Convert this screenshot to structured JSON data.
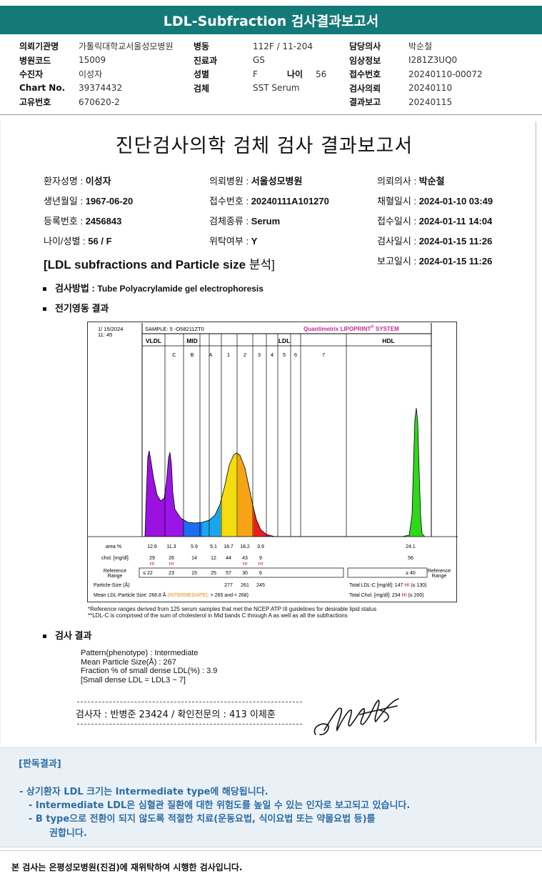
{
  "header": {
    "title": "LDL-Subfraction 검사결과보고서",
    "rows": [
      [
        {
          "k": "의뢰기관명",
          "v": "가톨릭대학교서울성모병원"
        },
        {
          "k": "병동",
          "v": "112F / 11-204"
        },
        {
          "k": "담당의사",
          "v": "박순철"
        }
      ],
      [
        {
          "k": "병원코드",
          "v": "15009"
        },
        {
          "k": "진료과",
          "v": "GS"
        },
        {
          "k": "임상정보",
          "v": "I281Z3UQ0"
        }
      ],
      [
        {
          "k": "수진자",
          "v": "이성자"
        },
        {
          "k": "성별",
          "v": "F"
        },
        {
          "k": "접수번호",
          "v": "20240110-00072"
        }
      ],
      [
        {
          "k": "Chart No.",
          "v": "39374432"
        },
        {
          "k": "검체",
          "v": "SST Serum"
        },
        {
          "k": "검사의뢰",
          "v": "20240110"
        }
      ],
      [
        {
          "k": "고유번호",
          "v": "670620-2"
        },
        {
          "k": "",
          "v": ""
        },
        {
          "k": "결과보고",
          "v": "20240115"
        }
      ]
    ],
    "age_label": "나이",
    "age_value": "56"
  },
  "report": {
    "title": "진단검사의학 검체 검사 결과보고서",
    "patient_name_label": "환자성명 : ",
    "patient_name": "이성자",
    "dob_label": "생년월일 : ",
    "dob": "1967-06-20",
    "reg_label": "등록번호 : ",
    "reg": "2456843",
    "agesex_label": "나이/성별 : ",
    "agesex": "56 / F",
    "hosp_label": "의뢰병원 : ",
    "hosp": "서울성모병원",
    "accession_label": "접수번호 : ",
    "accession": "20240111A101270",
    "specimen_label": "검체종류 : ",
    "specimen": "Serum",
    "outsource_label": "위탁여부 : ",
    "outsource": "Y",
    "doctor_label": "의뢰의사 : ",
    "doctor": "박순철",
    "collect_label": "채혈일시 : ",
    "collect": "2024-01-10 03:49",
    "receive_label": "접수일시 : ",
    "receive": "2024-01-11 14:04",
    "test_label": "검사일시 : ",
    "test": "2024-01-15 11:26",
    "report_label": "보고일시 : ",
    "report": "2024-01-15 11:26",
    "analysis_title_en": "[LDL subfractions and Particle size ",
    "analysis_title_ko": "분석]",
    "method_label": "검사방법 : ",
    "method": "Tube Polyacrylamide gel electrophoresis",
    "electro_label": "전기영동 결과",
    "result_label": "검사 결과"
  },
  "chart_data": {
    "type": "area",
    "date": "1/ 15/2024",
    "time": "11: 45",
    "sample": "SAMPLE:   5 -O58211ZT0",
    "system": "Quantimetrix LIPOPRINT",
    "system_suffix": " SYSTEM",
    "system_reg": "®",
    "bands": [
      "VLDL",
      "MID",
      "LDL",
      "HDL"
    ],
    "sub_bands": [
      "C",
      "B",
      "A",
      "1",
      "2",
      "3",
      "4",
      "5",
      "6",
      "7"
    ],
    "area_label": "area %",
    "area": [
      "12.6",
      "11.3",
      "5.9",
      "5.1",
      "18.7",
      "18.2",
      "3.9",
      "24.1"
    ],
    "chol_label": "chol. [mg/dl]",
    "chol": [
      "29",
      "26",
      "14",
      "12",
      "44",
      "43",
      "9",
      "56"
    ],
    "hi_flag": "HI",
    "ref_label": "Reference",
    "ref_label2": "Range",
    "ref": [
      "≤ 22",
      "23",
      "15",
      "25",
      "57",
      "30",
      "6",
      "≥ 40"
    ],
    "ps_label": "Particle-Size (Å)",
    "ps": [
      "277",
      "261",
      "245"
    ],
    "mean_label": "Mean LDL-Particle Size:",
    "mean_value": "266.8 Å",
    "mean_type": "(INTERMEDIATE);",
    "mean_range": "> 265 and < 268)",
    "total_ldl_label": "Total LDL-C [mg/dl]:",
    "total_ldl": "147",
    "total_ldl_ref": "(≤ 130)",
    "total_chol_label": "Total Chol. [mg/dl]:",
    "total_chol": "234",
    "total_chol_ref": "(≤ 200)"
  },
  "footnotes": [
    "*Reference ranges derived from 125 serum samples that met the NCEP ATP III guidelines for desirable lipid status",
    "**LDL-C is comprised of the sum of cholesterol in Mid bands C through A as well as all the subfractions"
  ],
  "results": [
    "Pattern(phenotype) : Intermediate",
    "Mean Particle Size(Å) : 267",
    "Fraction % of small dense LDL(%) : 3.9",
    "[Small dense LDL = LDL3 ~ 7]"
  ],
  "tester": "검사자 : 반병준  23424   /  확인전문의 : 413  이제훈",
  "verdict": {
    "title": "[판독결과]",
    "lines": [
      "-  상기환자 LDL 크기는 Intermediate type에 해당됩니다.",
      "-  Intermediate LDL은 심혈관 질환에 대한 위험도를 높일 수 있는 인자로 보고되고 있습니다.",
      "-  B type으로 전환이 되지 않도록 적절한 치료(운동요법, 식이요법 또는 약물요법 등)를",
      "권합니다."
    ]
  },
  "bottom_note": "본 검사는 은평성모병원(진검)에 재위탁하여 시행한 검사입니다."
}
